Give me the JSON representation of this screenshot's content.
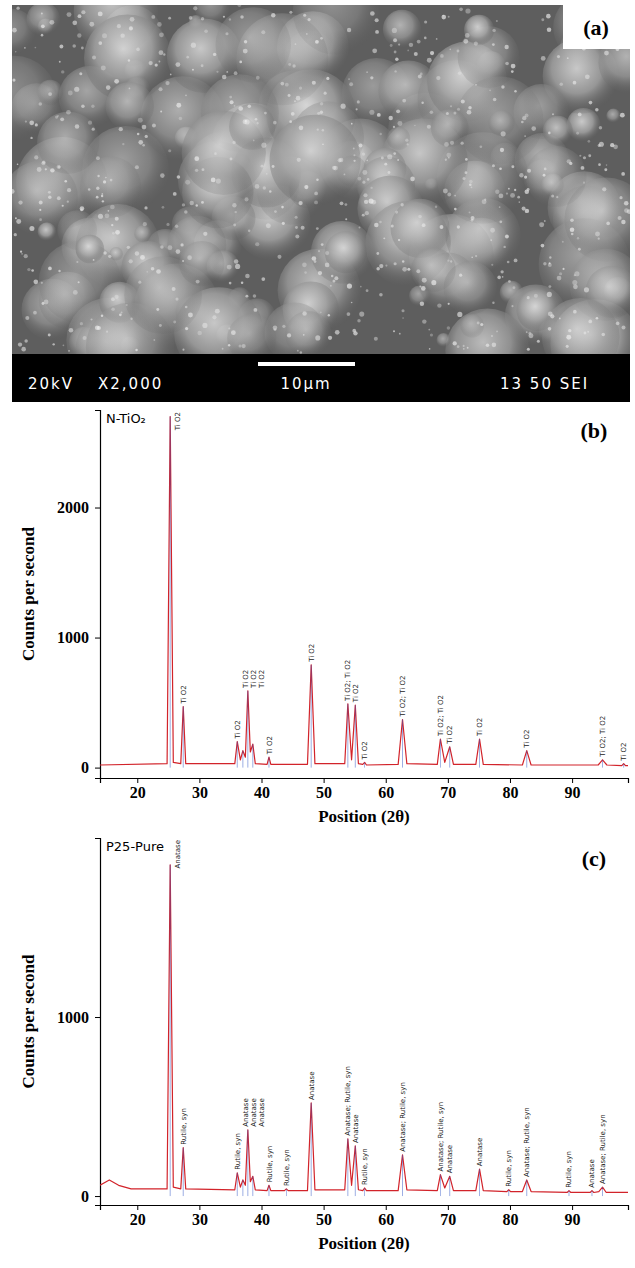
{
  "image": {
    "label": "(a)",
    "info_bar": [
      "20kV",
      "X2,000",
      "10μm",
      "13 50 SEI"
    ]
  },
  "chart_data": [
    {
      "type": "line",
      "title": "N-TiO₂",
      "label": "(b)",
      "x_label": "Position (2θ)",
      "y_label": "Counts per second",
      "x": [
        14,
        24.8,
        25.3,
        25.8,
        27.0,
        27.4,
        27.8,
        35.7,
        36.1,
        36.6,
        37.0,
        37.4,
        37.8,
        38.2,
        38.6,
        39.0,
        40.9,
        41.2,
        41.5,
        47.4,
        48.0,
        48.6,
        53.4,
        53.9,
        54.5,
        55.1,
        55.6,
        56.3,
        56.6,
        56.9,
        62.0,
        62.7,
        63.4,
        68.3,
        68.8,
        69.5,
        70.3,
        70.9,
        74.5,
        75.1,
        75.7,
        82.0,
        82.7,
        83.4,
        94.2,
        94.9,
        95.6,
        98.0,
        98.3,
        98.6,
        99
      ],
      "series": [
        {
          "color": "#d2232a",
          "values": [
            20,
            30,
            2700,
            40,
            30,
            470,
            30,
            30,
            200,
            60,
            130,
            80,
            590,
            120,
            180,
            30,
            25,
            80,
            25,
            25,
            790,
            30,
            30,
            490,
            60,
            480,
            30,
            25,
            40,
            20,
            25,
            370,
            30,
            25,
            220,
            40,
            160,
            25,
            25,
            220,
            25,
            20,
            130,
            20,
            20,
            60,
            20,
            15,
            30,
            15,
            15
          ]
        }
      ],
      "xlim": [
        14,
        99
      ],
      "ylim": [
        -80,
        2750
      ],
      "xticks": [
        20,
        30,
        40,
        50,
        60,
        70,
        80,
        90
      ],
      "yticks": [
        0,
        1000,
        2000
      ],
      "annotations": [
        {
          "x": 25.3,
          "text": "Ti O2"
        },
        {
          "x": 27.4,
          "text": "Ti O2"
        },
        {
          "x": 36.1,
          "text": "Ti O2"
        },
        {
          "x": 37.0,
          "text": "Ti O2"
        },
        {
          "x": 37.8,
          "text": "Ti O2"
        },
        {
          "x": 38.6,
          "text": "Ti O2"
        },
        {
          "x": 41.2,
          "text": "Ti O2"
        },
        {
          "x": 48.0,
          "text": "Ti O2"
        },
        {
          "x": 53.9,
          "text": "Ti O2; Ti O2"
        },
        {
          "x": 55.1,
          "text": "Ti O2"
        },
        {
          "x": 56.6,
          "text": "Ti O2"
        },
        {
          "x": 62.7,
          "text": "Ti O2; Ti O2"
        },
        {
          "x": 68.8,
          "text": "Ti O2; Ti O2"
        },
        {
          "x": 70.3,
          "text": "Ti O2"
        },
        {
          "x": 75.1,
          "text": "Ti O2"
        },
        {
          "x": 82.7,
          "text": "Ti O2"
        },
        {
          "x": 94.9,
          "text": "Ti O2; Ti O2"
        },
        {
          "x": 98.3,
          "text": "Ti O2"
        }
      ]
    },
    {
      "type": "line",
      "title": "P25-Pure",
      "label": "(c)",
      "x_label": "Position (2θ)",
      "y_label": "Counts per second",
      "x": [
        14,
        15.5,
        17,
        19,
        24.8,
        25.3,
        25.8,
        27.0,
        27.4,
        27.8,
        35.7,
        36.1,
        36.6,
        37.0,
        37.4,
        37.8,
        38.2,
        38.6,
        39.0,
        40.9,
        41.2,
        41.5,
        43.7,
        44.0,
        44.3,
        47.4,
        48.0,
        48.6,
        53.4,
        53.9,
        54.5,
        55.1,
        55.6,
        56.3,
        56.6,
        56.9,
        62.0,
        62.7,
        63.4,
        68.3,
        68.8,
        69.5,
        70.3,
        70.9,
        74.5,
        75.1,
        75.7,
        79.5,
        79.8,
        80.1,
        82.0,
        82.7,
        83.4,
        89.2,
        89.5,
        89.8,
        92.9,
        93.2,
        93.5,
        94.3,
        94.9,
        95.5,
        99
      ],
      "series": [
        {
          "color": "#d2232a",
          "values": [
            60,
            90,
            60,
            40,
            40,
            1850,
            50,
            40,
            270,
            40,
            35,
            130,
            50,
            90,
            60,
            370,
            80,
            110,
            35,
            30,
            60,
            30,
            30,
            40,
            30,
            30,
            520,
            35,
            35,
            320,
            60,
            280,
            35,
            30,
            45,
            30,
            30,
            230,
            35,
            30,
            120,
            45,
            110,
            30,
            30,
            150,
            30,
            25,
            35,
            25,
            25,
            90,
            25,
            20,
            30,
            20,
            20,
            30,
            20,
            25,
            50,
            20,
            20
          ]
        }
      ],
      "xlim": [
        14,
        99
      ],
      "ylim": [
        -50,
        2000
      ],
      "xticks": [
        20,
        30,
        40,
        50,
        60,
        70,
        80,
        90
      ],
      "yticks": [
        0,
        1000
      ],
      "annotations": [
        {
          "x": 25.3,
          "text": "Anatase"
        },
        {
          "x": 27.4,
          "text": "Rutile, syn"
        },
        {
          "x": 36.1,
          "text": "Rutile, syn"
        },
        {
          "x": 37.0,
          "text": "Anatase"
        },
        {
          "x": 37.8,
          "text": "Anatase"
        },
        {
          "x": 38.6,
          "text": "Anatase"
        },
        {
          "x": 41.2,
          "text": "Rutile, syn"
        },
        {
          "x": 44.0,
          "text": "Rutile, syn"
        },
        {
          "x": 48.0,
          "text": "Anatase"
        },
        {
          "x": 53.9,
          "text": "Anatase; Rutile, syn"
        },
        {
          "x": 55.1,
          "text": "Anatase"
        },
        {
          "x": 56.6,
          "text": "Rutile, syn"
        },
        {
          "x": 62.7,
          "text": "Anatase; Rutile, syn"
        },
        {
          "x": 68.8,
          "text": "Anatase; Rutile, syn"
        },
        {
          "x": 70.3,
          "text": "Anatase"
        },
        {
          "x": 75.1,
          "text": "Anatase"
        },
        {
          "x": 79.8,
          "text": "Rutile, syn"
        },
        {
          "x": 82.7,
          "text": "Anatase; Rutile, syn"
        },
        {
          "x": 89.5,
          "text": "Rutile, syn"
        },
        {
          "x": 93.2,
          "text": "Anatase"
        },
        {
          "x": 94.9,
          "text": "Anatase; Rutile, syn"
        }
      ]
    }
  ]
}
